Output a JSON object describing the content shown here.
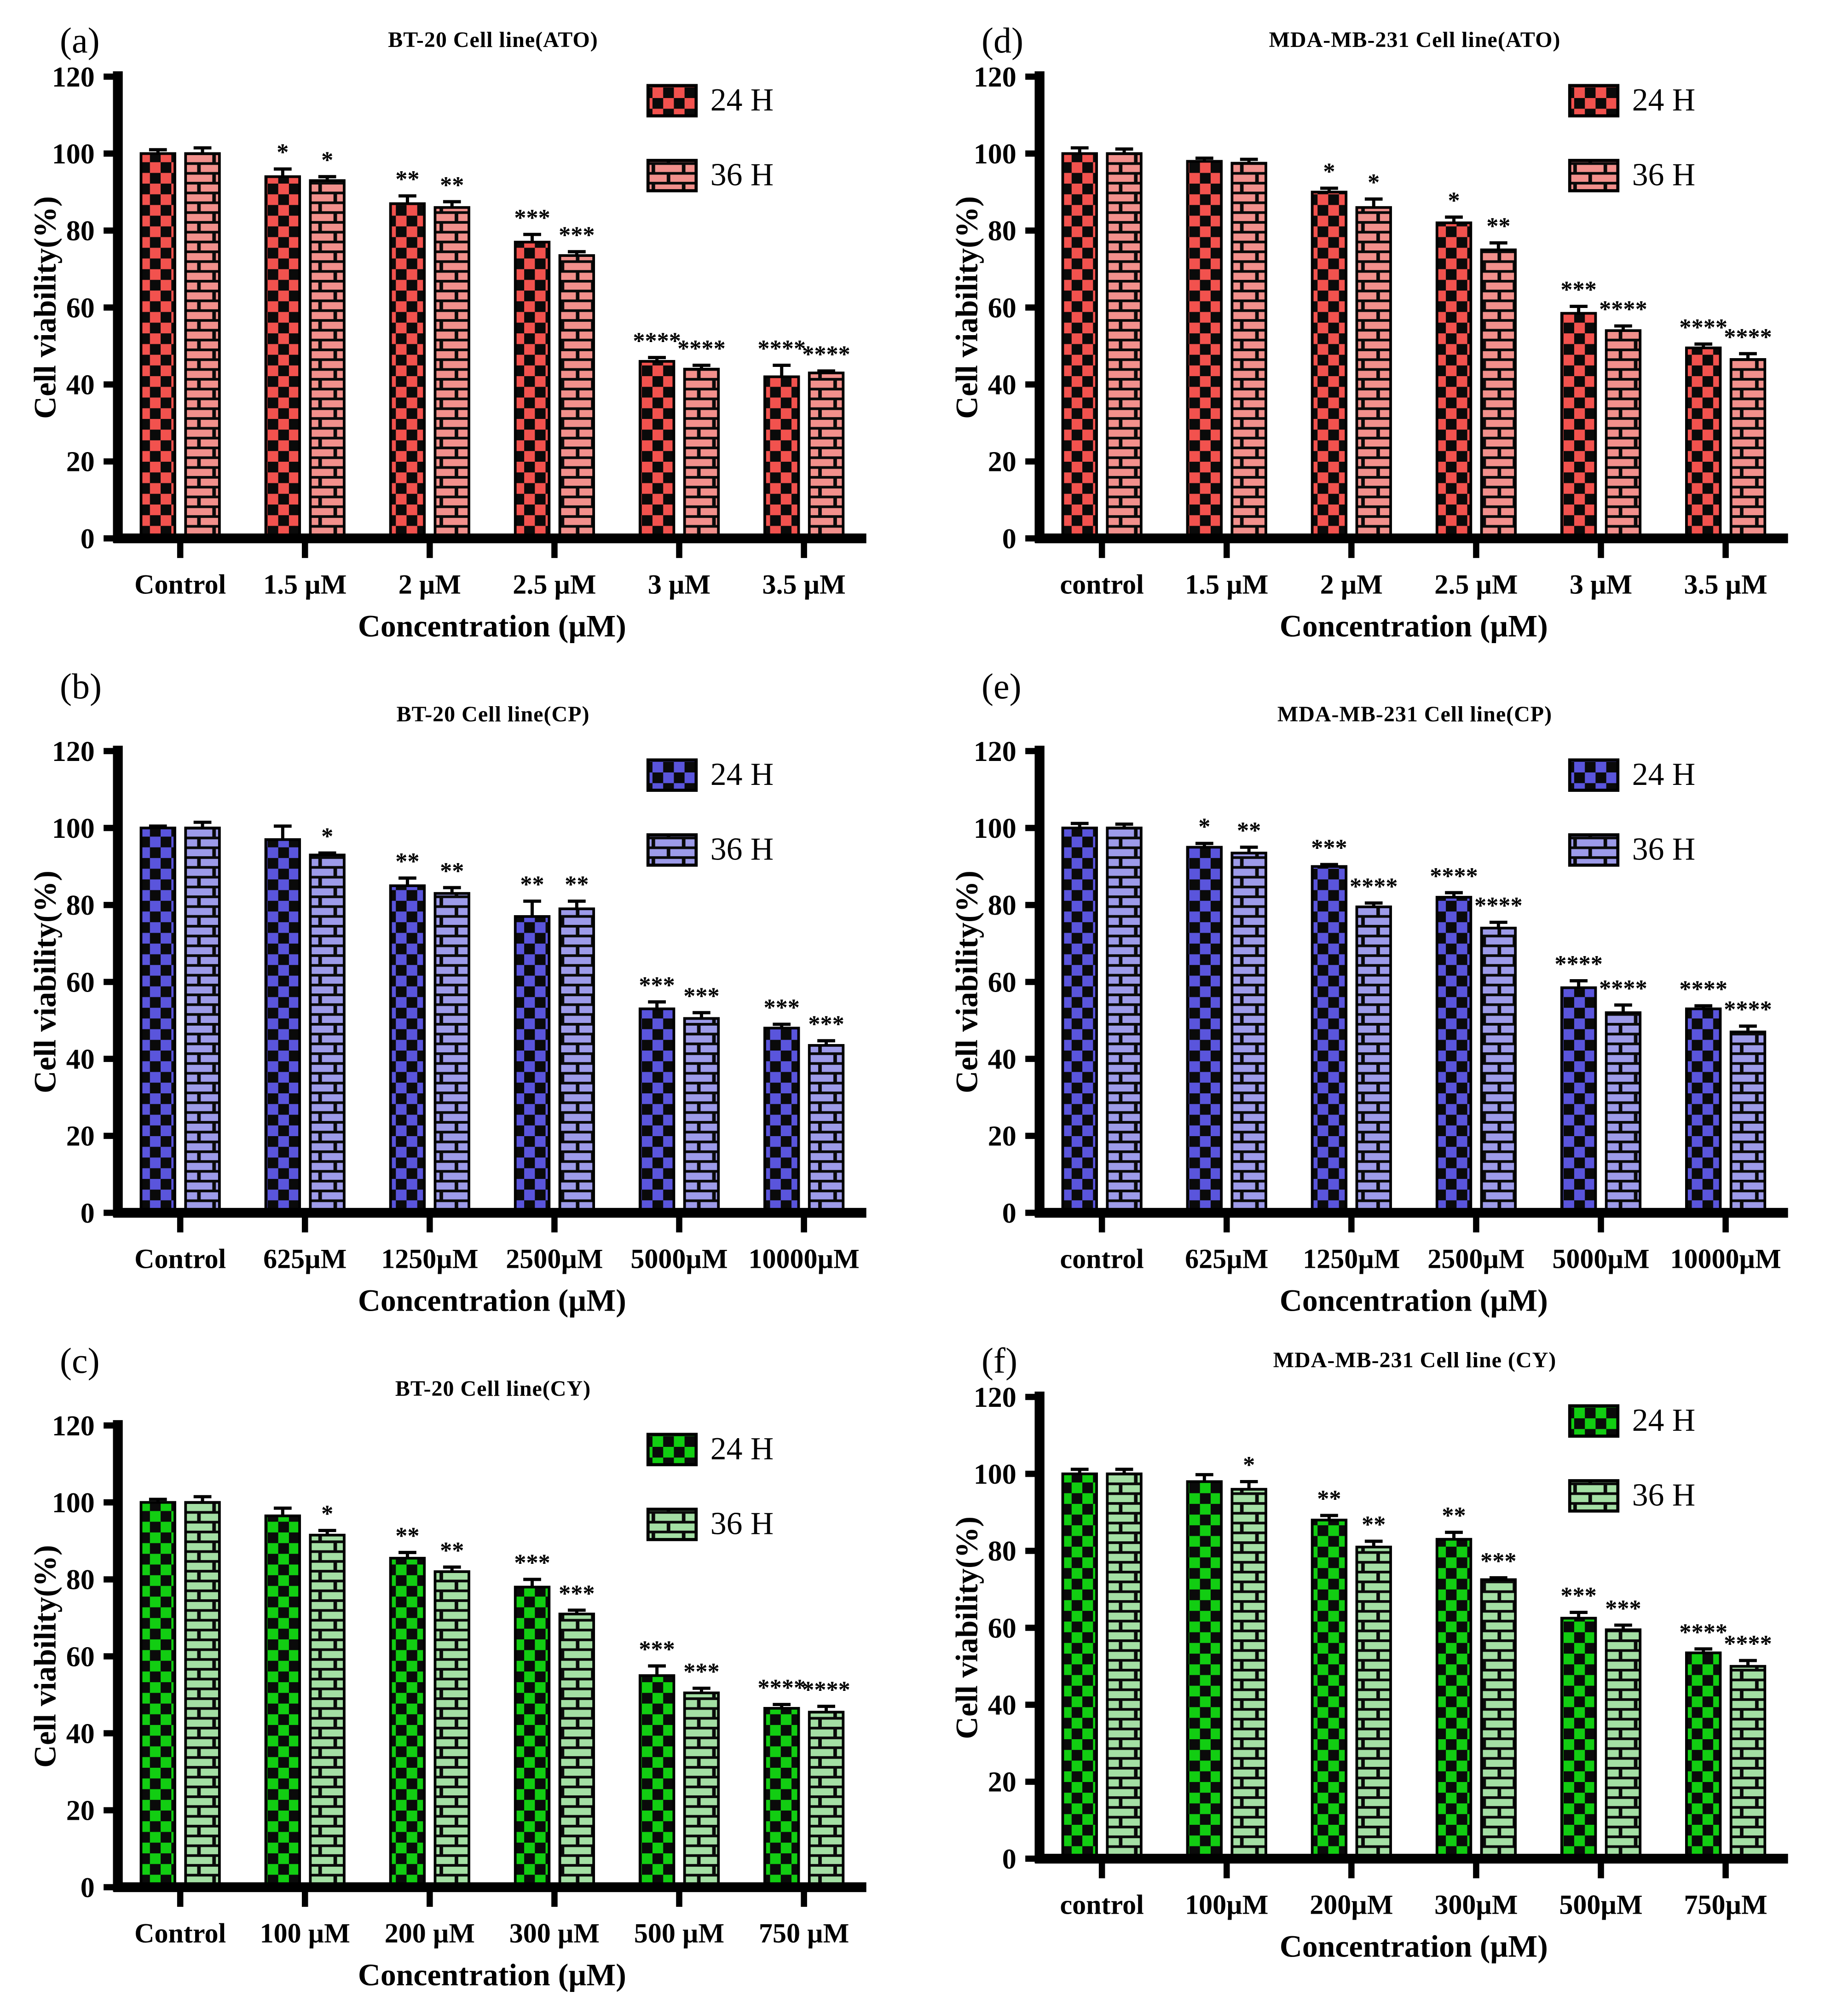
{
  "figure": {
    "background": "#ffffff",
    "xlabel_shared": "Concentration (µM)",
    "ylabel_shared": "Cell viability(%)",
    "legend_labels": [
      "24 H",
      "36 H"
    ]
  },
  "chart_data": [
    {
      "type": "bar",
      "panel_label": "(a)",
      "title": "BT-20 Cell line(ATO)",
      "xlabel": "Concentration  (µM)",
      "ylabel": "Cell viability(%)",
      "ylim": [
        0,
        120
      ],
      "ytick_step": 20,
      "grid": false,
      "legend_position": "top-right",
      "categories": [
        "Control",
        "1.5 µM",
        "2 µM",
        "2.5 µM",
        "3 µM",
        "3.5 µM"
      ],
      "colors": {
        "h24": "#f2524e",
        "h36": "#f2908c"
      },
      "series": [
        {
          "name": "24 H",
          "pattern": "checker",
          "values": [
            100,
            94,
            87,
            77,
            46,
            42
          ],
          "errors": [
            1,
            2,
            2,
            2,
            1,
            3
          ],
          "stars": [
            "",
            "*",
            "**",
            "***",
            "****",
            "****"
          ]
        },
        {
          "name": "36 H",
          "pattern": "brick",
          "values": [
            100,
            93,
            86,
            73.5,
            44,
            43
          ],
          "errors": [
            1.5,
            1,
            1.5,
            1,
            1,
            0.5
          ],
          "stars": [
            "",
            "*",
            "**",
            "***",
            "****",
            "****"
          ]
        }
      ]
    },
    {
      "type": "bar",
      "panel_label": "(d)",
      "title": "MDA-MB-231 Cell line(ATO)",
      "xlabel": "Concentration  (µM)",
      "ylabel": "Cell viability(%)",
      "ylim": [
        0,
        120
      ],
      "ytick_step": 20,
      "grid": false,
      "legend_position": "top-right",
      "categories": [
        "control",
        "1.5 µM",
        "2 µM",
        "2.5 µM",
        "3 µM",
        "3.5 µM"
      ],
      "colors": {
        "h24": "#f2524e",
        "h36": "#f2908c"
      },
      "series": [
        {
          "name": "24 H",
          "pattern": "checker",
          "values": [
            100,
            98,
            90,
            82,
            58.5,
            49.5
          ],
          "errors": [
            1.5,
            0.8,
            1,
            1.5,
            1.8,
            1
          ],
          "stars": [
            "",
            "",
            "*",
            "*",
            "***",
            "****"
          ]
        },
        {
          "name": "36 H",
          "pattern": "brick",
          "values": [
            100,
            97.5,
            86,
            75,
            54,
            46.5
          ],
          "errors": [
            1.2,
            1,
            2.2,
            1.8,
            1.2,
            1.5
          ],
          "stars": [
            "",
            "",
            "*",
            "**",
            "****",
            "****"
          ]
        }
      ]
    },
    {
      "type": "bar",
      "panel_label": "(b)",
      "title": "BT-20 Cell line(CP)",
      "xlabel": "Concentration  (µM)",
      "ylabel": "Cell viability(%)",
      "ylim": [
        0,
        120
      ],
      "ytick_step": 20,
      "grid": false,
      "legend_position": "top-right",
      "categories": [
        "Control",
        "625µM",
        "1250µM",
        "2500µM",
        "5000µM",
        "10000µM"
      ],
      "colors": {
        "h24": "#5a55dc",
        "h36": "#9d9be9"
      },
      "series": [
        {
          "name": "24 H",
          "pattern": "checker",
          "values": [
            100,
            97,
            85,
            77,
            53,
            48
          ],
          "errors": [
            0.5,
            3.5,
            2,
            4,
            1.8,
            1
          ],
          "stars": [
            "",
            "",
            "**",
            "**",
            "***",
            "***"
          ]
        },
        {
          "name": "36 H",
          "pattern": "brick",
          "values": [
            100,
            93,
            83,
            79,
            50.5,
            43.5
          ],
          "errors": [
            1.5,
            0.5,
            1.5,
            2,
            1.5,
            1.2
          ],
          "stars": [
            "",
            "*",
            "**",
            "**",
            "***",
            "***"
          ]
        }
      ]
    },
    {
      "type": "bar",
      "panel_label": "(e)",
      "title": "MDA-MB-231 Cell line(CP)",
      "xlabel": "Concentration  (µM)",
      "ylabel": "Cell viability(%)",
      "ylim": [
        0,
        120
      ],
      "ytick_step": 20,
      "grid": false,
      "legend_position": "top-right",
      "categories": [
        "control",
        "625µM",
        "1250µM",
        "2500µM",
        "5000µM",
        "10000µM"
      ],
      "colors": {
        "h24": "#5a55dc",
        "h36": "#9d9be9"
      },
      "series": [
        {
          "name": "24 H",
          "pattern": "checker",
          "values": [
            100,
            95,
            90,
            82,
            58.5,
            53
          ],
          "errors": [
            1.2,
            1,
            0.5,
            1.2,
            1.8,
            0.8
          ],
          "stars": [
            "",
            "*",
            "***",
            "****",
            "****",
            "****"
          ]
        },
        {
          "name": "36 H",
          "pattern": "brick",
          "values": [
            100,
            93.5,
            79.5,
            74,
            52,
            47
          ],
          "errors": [
            1,
            1.5,
            1,
            1.5,
            2,
            1.5
          ],
          "stars": [
            "",
            "**",
            "****",
            "****",
            "****",
            "****"
          ]
        }
      ]
    },
    {
      "type": "bar",
      "panel_label": "(c)",
      "title": "BT-20 Cell line(CY)",
      "xlabel": "Concentration  (µM)",
      "ylabel": "Cell viability(%)",
      "ylim": [
        0,
        120
      ],
      "ytick_step": 20,
      "grid": false,
      "legend_position": "top-right",
      "categories": [
        "Control",
        "100 µM",
        "200 µM",
        "300 µM",
        "500 µM",
        "750 µM"
      ],
      "colors": {
        "h24": "#12cd12",
        "h36": "#a4dfa4"
      },
      "series": [
        {
          "name": "24 H",
          "pattern": "checker",
          "values": [
            100,
            96.5,
            85.5,
            78,
            55,
            46.5
          ],
          "errors": [
            0.8,
            2,
            1.5,
            2,
            2.5,
            1
          ],
          "stars": [
            "",
            "",
            "**",
            "***",
            "***",
            "****"
          ]
        },
        {
          "name": "36 H",
          "pattern": "brick",
          "values": [
            100,
            91.5,
            82,
            71,
            50.5,
            45.5
          ],
          "errors": [
            1.5,
            1.2,
            1.2,
            1,
            1.2,
            1.5
          ],
          "stars": [
            "",
            "*",
            "**",
            "***",
            "***",
            "****"
          ]
        }
      ]
    },
    {
      "type": "bar",
      "panel_label": "(f)",
      "title": "MDA-MB-231 Cell line (CY)",
      "xlabel": "Concentration  (µM)",
      "ylabel": "Cell viability(%)",
      "ylim": [
        0,
        120
      ],
      "ytick_step": 20,
      "grid": false,
      "legend_position": "top-right",
      "categories": [
        "control",
        "100µM",
        "200µM",
        "300µM",
        "500µM",
        "750µM"
      ],
      "colors": {
        "h24": "#12cd12",
        "h36": "#a4dfa4"
      },
      "series": [
        {
          "name": "24 H",
          "pattern": "checker",
          "values": [
            100,
            98,
            88,
            83,
            62.5,
            53.5
          ],
          "errors": [
            1.2,
            1.8,
            1.2,
            1.8,
            1.5,
            1
          ],
          "stars": [
            "",
            "",
            "**",
            "**",
            "***",
            "****"
          ]
        },
        {
          "name": "36 H",
          "pattern": "brick",
          "values": [
            100,
            96,
            81,
            72.5,
            59.5,
            50
          ],
          "errors": [
            1.2,
            2,
            1.5,
            0.5,
            1.2,
            1.5
          ],
          "stars": [
            "",
            "*",
            "**",
            "***",
            "***",
            "****"
          ]
        }
      ]
    }
  ]
}
